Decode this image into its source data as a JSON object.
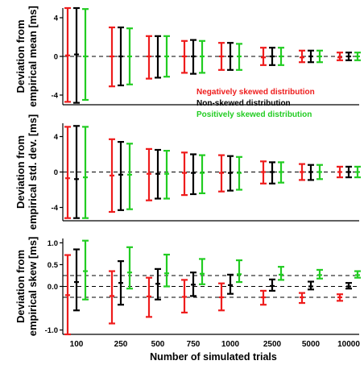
{
  "chart_data": {
    "type": "errorbar",
    "categories": [
      "100",
      "250",
      "500",
      "750",
      "1000",
      "2500",
      "5000",
      "10000"
    ],
    "xlabel": "Number of simulated trials",
    "legend": {
      "placement": "inside top panel, right",
      "entries": [
        {
          "name": "Negatively skewed distribution",
          "color": "#ee1c1c"
        },
        {
          "name": "Non-skewed distribution",
          "color": "#000000"
        },
        {
          "name": "Positively skewed distribution",
          "color": "#22cc22"
        }
      ]
    },
    "colors": {
      "negative": "#ee1c1c",
      "nonskewed": "#000000",
      "positive": "#22cc22"
    },
    "panels": [
      {
        "ylabel_line1": "Deviation from",
        "ylabel_line2": "empirical mean [ms]",
        "ylim": [
          -5,
          5
        ],
        "yticks": [
          -4,
          0,
          4
        ],
        "ytick_labels": [
          "-4",
          "0",
          "4"
        ],
        "reference_lines": [
          0
        ],
        "series": [
          {
            "name": "Negatively skewed distribution",
            "center": [
              0.1,
              0.0,
              0.0,
              0.0,
              0.0,
              -0.1,
              -0.1,
              -0.1
            ],
            "lower": [
              -4.7,
              -3.1,
              -2.3,
              -1.7,
              -1.4,
              -0.9,
              -0.6,
              -0.4
            ],
            "upper": [
              5.0,
              3.0,
              2.1,
              1.6,
              1.4,
              0.9,
              0.6,
              0.4
            ]
          },
          {
            "name": "Non-skewed distribution",
            "center": [
              0.2,
              0.0,
              0.0,
              0.0,
              0.0,
              0.0,
              0.0,
              0.0
            ],
            "lower": [
              -4.8,
              -3.0,
              -2.2,
              -1.8,
              -1.4,
              -0.9,
              -0.6,
              -0.4
            ],
            "upper": [
              5.0,
              3.0,
              2.1,
              1.7,
              1.4,
              0.9,
              0.6,
              0.4
            ]
          },
          {
            "name": "Positively skewed distribution",
            "center": [
              0.0,
              0.0,
              0.0,
              0.0,
              0.0,
              0.0,
              0.0,
              0.0
            ],
            "lower": [
              -4.5,
              -2.9,
              -2.1,
              -1.7,
              -1.4,
              -0.9,
              -0.6,
              -0.4
            ],
            "upper": [
              4.9,
              2.9,
              2.1,
              1.6,
              1.3,
              0.9,
              0.6,
              0.4
            ]
          }
        ]
      },
      {
        "ylabel_line1": "Deviation from",
        "ylabel_line2": "empirical std. dev. [ms]",
        "ylim": [
          -5.5,
          5.5
        ],
        "yticks": [
          -4,
          0,
          4
        ],
        "ytick_labels": [
          "-4",
          "0",
          "4"
        ],
        "reference_lines": [
          0
        ],
        "series": [
          {
            "name": "Negatively skewed distribution",
            "center": [
              -0.7,
              -0.4,
              -0.2,
              -0.1,
              -0.1,
              0.0,
              0.0,
              0.0
            ],
            "lower": [
              -5.2,
              -4.5,
              -3.2,
              -2.6,
              -2.2,
              -1.3,
              -0.9,
              -0.6
            ],
            "upper": [
              5.1,
              3.7,
              2.6,
              2.2,
              1.9,
              1.2,
              0.9,
              0.6
            ]
          },
          {
            "name": "Non-skewed distribution",
            "center": [
              -0.8,
              -0.3,
              -0.2,
              -0.1,
              -0.1,
              0.0,
              0.0,
              0.0
            ],
            "lower": [
              -5.2,
              -4.3,
              -3.0,
              -2.5,
              -2.1,
              -1.3,
              -0.9,
              -0.6
            ],
            "upper": [
              5.2,
              3.4,
              2.5,
              2.0,
              1.8,
              1.1,
              0.8,
              0.6
            ]
          },
          {
            "name": "Positively skewed distribution",
            "center": [
              -0.6,
              -0.3,
              -0.2,
              -0.1,
              -0.1,
              0.0,
              0.0,
              0.0
            ],
            "lower": [
              -5.2,
              -4.2,
              -3.0,
              -2.4,
              -2.0,
              -1.2,
              -0.8,
              -0.6
            ],
            "upper": [
              5.1,
              3.2,
              2.4,
              1.9,
              1.7,
              1.1,
              0.8,
              0.6
            ]
          }
        ]
      },
      {
        "ylabel_line1": "Deviation from",
        "ylabel_line2": "empirical skew [ms]",
        "ylim": [
          -1.1,
          1.1
        ],
        "yticks": [
          -1.0,
          0.0,
          0.5,
          1.0
        ],
        "ytick_labels": [
          "-1.0",
          "0.0",
          "0.5",
          "1.0"
        ],
        "reference_lines": [
          -0.25,
          0.0,
          0.25
        ],
        "series": [
          {
            "name": "Negatively skewed distribution",
            "center": [
              -0.2,
              -0.22,
              -0.23,
              -0.24,
              -0.25,
              -0.25,
              -0.25,
              -0.25
            ],
            "lower": [
              -1.1,
              -0.85,
              -0.7,
              -0.6,
              -0.55,
              -0.42,
              -0.38,
              -0.33
            ],
            "upper": [
              0.72,
              0.35,
              0.2,
              0.15,
              0.07,
              -0.1,
              -0.15,
              -0.18
            ]
          },
          {
            "name": "Non-skewed distribution",
            "center": [
              0.1,
              0.08,
              0.06,
              0.04,
              0.03,
              0.01,
              0.0,
              0.0
            ],
            "lower": [
              -0.55,
              -0.42,
              -0.3,
              -0.22,
              -0.17,
              -0.1,
              -0.07,
              -0.05
            ],
            "upper": [
              0.85,
              0.58,
              0.4,
              0.32,
              0.27,
              0.16,
              0.11,
              0.08
            ]
          },
          {
            "name": "Positively skewed distribution",
            "center": [
              0.35,
              0.32,
              0.3,
              0.29,
              0.28,
              0.27,
              0.26,
              0.26
            ],
            "lower": [
              -0.3,
              -0.05,
              0.0,
              0.05,
              0.1,
              0.15,
              0.18,
              0.2
            ],
            "upper": [
              1.05,
              0.9,
              0.73,
              0.63,
              0.6,
              0.45,
              0.38,
              0.35
            ]
          }
        ]
      }
    ]
  }
}
